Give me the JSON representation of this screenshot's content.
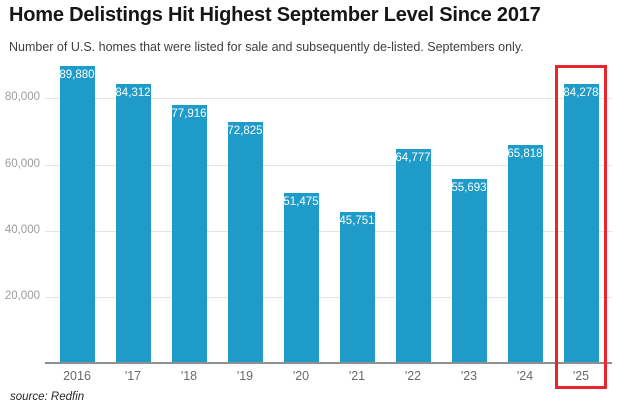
{
  "chart_data": {
    "type": "bar",
    "title": "Home Delistings Hit Highest September Level Since 2017",
    "subtitle": "Number of U.S. homes that were listed for sale and subsequently de-listed. Septembers only.",
    "source_note": "source: Redfin",
    "categories": [
      "2016",
      "'17",
      "'18",
      "'19",
      "'20",
      "'21",
      "'22",
      "'23",
      "'24",
      "'25"
    ],
    "values": [
      89880,
      84312,
      77916,
      72825,
      51475,
      45751,
      64777,
      55693,
      65818,
      84278
    ],
    "value_labels": [
      "89,880",
      "84,312",
      "77,916",
      "72,825",
      "51,475",
      "45,751",
      "64,777",
      "55,693",
      "65,818",
      "84,278"
    ],
    "xlabel": "",
    "ylabel": "",
    "ylim": [
      0,
      91000
    ],
    "y_ticks": [
      {
        "value": 20000,
        "label": "20,000"
      },
      {
        "value": 40000,
        "label": "40,000"
      },
      {
        "value": 60000,
        "label": "60,000"
      },
      {
        "value": 80000,
        "label": "80,000"
      }
    ],
    "grid": "horizontal",
    "legend": "none",
    "bar_color": "#1f9bca",
    "value_label_color": "#ffffff",
    "axis_label_color": "#9c9c9c",
    "x_label_color": "#6b6b6b",
    "highlight": {
      "index": 9,
      "box_color": "#e8262b"
    }
  }
}
